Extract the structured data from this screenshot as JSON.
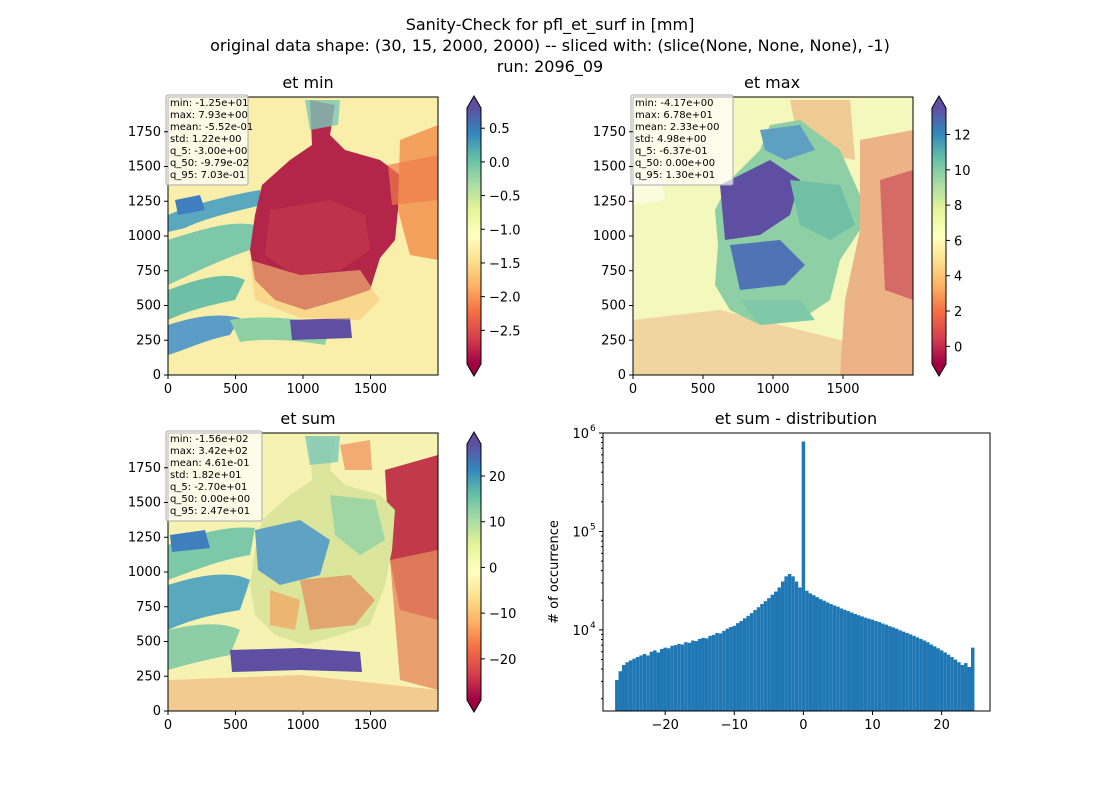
{
  "figure": {
    "suptitle": [
      "Sanity-Check for pfl_et_surf in [mm]",
      "original data shape: (30, 15, 2000, 2000) -- sliced with: (slice(None, None, None), -1)",
      "run: 2096_09"
    ]
  },
  "maps": [
    {
      "id": "min",
      "title": "et min",
      "stats": [
        "min: -1.25e+01",
        "max: 7.93e+00",
        "mean: -5.52e-01",
        "std: 1.22e+00",
        "q_5: -3.00e+00",
        "q_50: -9.79e-02",
        "q_95: 7.03e-01"
      ],
      "xticks": [
        0,
        500,
        1000,
        1500
      ],
      "yticks": [
        0,
        250,
        500,
        750,
        1000,
        1250,
        1500,
        1750
      ],
      "extent": [
        0,
        2000
      ],
      "colorbar": {
        "vmin": -3.0,
        "vmax": 0.8,
        "ticks": [
          0.5,
          0.0,
          -0.5,
          -1.0,
          -1.5,
          -2.0,
          -2.5
        ],
        "labels": [
          "0.5",
          "0.0",
          "−0.5",
          "−1.0",
          "−1.5",
          "−2.0",
          "−2.5"
        ]
      },
      "colormap": "Spectral"
    },
    {
      "id": "max",
      "title": "et max",
      "stats": [
        "min: -4.17e+00",
        "max: 6.78e+01",
        "mean: 2.33e+00",
        "std: 4.98e+00",
        "q_5: -6.37e-01",
        "q_50: 0.00e+00",
        "q_95: 1.30e+01"
      ],
      "xticks": [
        0,
        500,
        1000,
        1500
      ],
      "yticks": [
        0,
        250,
        500,
        750,
        1000,
        1250,
        1500,
        1750
      ],
      "extent": [
        0,
        2000
      ],
      "colorbar": {
        "vmin": -1.0,
        "vmax": 13.5,
        "ticks": [
          12,
          10,
          8,
          6,
          4,
          2,
          0
        ],
        "labels": [
          "12",
          "10",
          "8",
          "6",
          "4",
          "2",
          "0"
        ]
      },
      "colormap": "Spectral"
    },
    {
      "id": "sum",
      "title": "et sum",
      "stats": [
        "min: -1.56e+02",
        "max: 3.42e+02",
        "mean: 4.61e-01",
        "std: 1.82e+01",
        "q_5: -2.70e+01",
        "q_50: 0.00e+00",
        "q_95: 2.47e+01"
      ],
      "xticks": [
        0,
        500,
        1000,
        1500
      ],
      "yticks": [
        0,
        250,
        500,
        750,
        1000,
        1250,
        1500,
        1750
      ],
      "extent": [
        0,
        2000
      ],
      "colorbar": {
        "vmin": -29,
        "vmax": 27,
        "ticks": [
          20,
          10,
          0,
          -10,
          -20
        ],
        "labels": [
          "20",
          "10",
          "0",
          "−10",
          "−20"
        ]
      },
      "colormap": "Spectral"
    }
  ],
  "chart_data": {
    "type": "bar",
    "title": "et sum - distribution",
    "xlabel": "",
    "ylabel": "# of occurrence",
    "yscale": "log",
    "xlim": [
      -29,
      27
    ],
    "ylim": [
      1500,
      1000000
    ],
    "xticks": [
      -20,
      -10,
      0,
      10,
      20
    ],
    "xtick_labels": [
      "−20",
      "−10",
      "0",
      "10",
      "20"
    ],
    "yticks": [
      10000,
      100000,
      1000000
    ],
    "ytick_labels": [
      "10^4",
      "10^5",
      "10^6"
    ],
    "color": "#1f77b4",
    "bins": [
      {
        "x": -27.0,
        "y": 3100
      },
      {
        "x": -26.5,
        "y": 3800
      },
      {
        "x": -26.0,
        "y": 4400
      },
      {
        "x": -25.5,
        "y": 4700
      },
      {
        "x": -25.0,
        "y": 4900
      },
      {
        "x": -24.5,
        "y": 5100
      },
      {
        "x": -24.0,
        "y": 5300
      },
      {
        "x": -23.5,
        "y": 5500
      },
      {
        "x": -23.0,
        "y": 5700
      },
      {
        "x": -22.5,
        "y": 5500
      },
      {
        "x": -22.0,
        "y": 6000
      },
      {
        "x": -21.5,
        "y": 6200
      },
      {
        "x": -21.0,
        "y": 5900
      },
      {
        "x": -20.5,
        "y": 6400
      },
      {
        "x": -20.0,
        "y": 6600
      },
      {
        "x": -19.5,
        "y": 6500
      },
      {
        "x": -19.0,
        "y": 6900
      },
      {
        "x": -18.5,
        "y": 7000
      },
      {
        "x": -18.0,
        "y": 7200
      },
      {
        "x": -17.5,
        "y": 7100
      },
      {
        "x": -17.0,
        "y": 7500
      },
      {
        "x": -16.5,
        "y": 7400
      },
      {
        "x": -16.0,
        "y": 7800
      },
      {
        "x": -15.5,
        "y": 7700
      },
      {
        "x": -15.0,
        "y": 8100
      },
      {
        "x": -14.5,
        "y": 8300
      },
      {
        "x": -14.0,
        "y": 8200
      },
      {
        "x": -13.5,
        "y": 8700
      },
      {
        "x": -13.0,
        "y": 8900
      },
      {
        "x": -12.5,
        "y": 9300
      },
      {
        "x": -12.0,
        "y": 9200
      },
      {
        "x": -11.5,
        "y": 9800
      },
      {
        "x": -11.0,
        "y": 10300
      },
      {
        "x": -10.5,
        "y": 10700
      },
      {
        "x": -10.0,
        "y": 11000
      },
      {
        "x": -9.5,
        "y": 11700
      },
      {
        "x": -9.0,
        "y": 12300
      },
      {
        "x": -8.5,
        "y": 13100
      },
      {
        "x": -8.0,
        "y": 13900
      },
      {
        "x": -7.5,
        "y": 14800
      },
      {
        "x": -7.0,
        "y": 15900
      },
      {
        "x": -6.5,
        "y": 17000
      },
      {
        "x": -6.0,
        "y": 18300
      },
      {
        "x": -5.5,
        "y": 19600
      },
      {
        "x": -5.0,
        "y": 21000
      },
      {
        "x": -4.5,
        "y": 22800
      },
      {
        "x": -4.0,
        "y": 24500
      },
      {
        "x": -3.5,
        "y": 27000
      },
      {
        "x": -3.0,
        "y": 31000
      },
      {
        "x": -2.5,
        "y": 35000
      },
      {
        "x": -2.0,
        "y": 37000
      },
      {
        "x": -1.5,
        "y": 35000
      },
      {
        "x": -1.0,
        "y": 31000
      },
      {
        "x": -0.5,
        "y": 27000
      },
      {
        "x": 0.0,
        "y": 820000
      },
      {
        "x": 0.5,
        "y": 25000
      },
      {
        "x": 1.0,
        "y": 23500
      },
      {
        "x": 1.5,
        "y": 22500
      },
      {
        "x": 2.0,
        "y": 21500
      },
      {
        "x": 2.5,
        "y": 20500
      },
      {
        "x": 3.0,
        "y": 19800
      },
      {
        "x": 3.5,
        "y": 19000
      },
      {
        "x": 4.0,
        "y": 18300
      },
      {
        "x": 4.5,
        "y": 17700
      },
      {
        "x": 5.0,
        "y": 17200
      },
      {
        "x": 5.5,
        "y": 16500
      },
      {
        "x": 6.0,
        "y": 16000
      },
      {
        "x": 6.5,
        "y": 15500
      },
      {
        "x": 7.0,
        "y": 15000
      },
      {
        "x": 7.5,
        "y": 14500
      },
      {
        "x": 8.0,
        "y": 14100
      },
      {
        "x": 8.5,
        "y": 13700
      },
      {
        "x": 9.0,
        "y": 13300
      },
      {
        "x": 9.5,
        "y": 13000
      },
      {
        "x": 10.0,
        "y": 12700
      },
      {
        "x": 10.5,
        "y": 12300
      },
      {
        "x": 11.0,
        "y": 12000
      },
      {
        "x": 11.5,
        "y": 11600
      },
      {
        "x": 12.0,
        "y": 11300
      },
      {
        "x": 12.5,
        "y": 10900
      },
      {
        "x": 13.0,
        "y": 10600
      },
      {
        "x": 13.5,
        "y": 10300
      },
      {
        "x": 14.0,
        "y": 9900
      },
      {
        "x": 14.5,
        "y": 9600
      },
      {
        "x": 15.0,
        "y": 9300
      },
      {
        "x": 15.5,
        "y": 9000
      },
      {
        "x": 16.0,
        "y": 8700
      },
      {
        "x": 16.5,
        "y": 8400
      },
      {
        "x": 17.0,
        "y": 8100
      },
      {
        "x": 17.5,
        "y": 7800
      },
      {
        "x": 18.0,
        "y": 7500
      },
      {
        "x": 18.5,
        "y": 7100
      },
      {
        "x": 19.0,
        "y": 6800
      },
      {
        "x": 19.5,
        "y": 6500
      },
      {
        "x": 20.0,
        "y": 6200
      },
      {
        "x": 20.5,
        "y": 5900
      },
      {
        "x": 21.0,
        "y": 5600
      },
      {
        "x": 21.5,
        "y": 5300
      },
      {
        "x": 22.0,
        "y": 5000
      },
      {
        "x": 22.5,
        "y": 4700
      },
      {
        "x": 23.0,
        "y": 4400
      },
      {
        "x": 23.5,
        "y": 4600
      },
      {
        "x": 24.0,
        "y": 4200
      },
      {
        "x": 24.5,
        "y": 6600
      }
    ]
  }
}
